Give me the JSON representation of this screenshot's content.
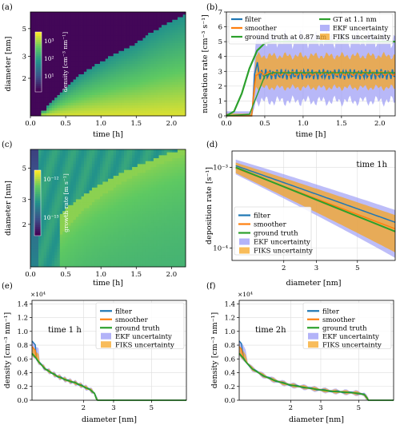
{
  "colors": {
    "filter": "#1f77b4",
    "smoother": "#ff7f0e",
    "ground_truth": "#2ca02c",
    "ekf_band": "#9a9af5",
    "fiks_band": "#f5a623",
    "viridis_low": "#440154",
    "viridis_high": "#fde725"
  },
  "chart_data": [
    {
      "panel": "(a)",
      "type": "heatmap",
      "xlabel": "time [h]",
      "ylabel": "diameter [nm]",
      "colorbar_label": "density [cm⁻³ nm⁻¹]",
      "colorbar_ticks": [
        "10³",
        "10²",
        "10¹"
      ],
      "xticks": [
        "0.0",
        "0.5",
        "1.0",
        "1.5",
        "2.0"
      ],
      "yticks": [
        "2",
        "3",
        "5"
      ],
      "xlim": [
        0,
        2.2
      ],
      "front": {
        "x": [
          0.2,
          0.5,
          1.0,
          1.5,
          2.2
        ],
        "y_nm": [
          1.1,
          1.7,
          2.7,
          3.8,
          6.5
        ]
      }
    },
    {
      "panel": "(b)",
      "type": "line",
      "xlabel": "time [h]",
      "ylabel": "nucleation rate [cm⁻³ s⁻¹]",
      "xticks": [
        "0.0",
        "0.5",
        "1.0",
        "1.5",
        "2.0"
      ],
      "yticks": [
        "0",
        "1",
        "2",
        "3",
        "4",
        "5",
        "6",
        "7"
      ],
      "xlim": [
        0,
        2.2
      ],
      "ylim": [
        0,
        7
      ],
      "legend": [
        "filter",
        "smoother",
        "ground truth at 0.87 nm",
        "GT at 1.1 nm",
        "EKF uncertainty",
        "FIKS uncertainty"
      ],
      "series": [
        {
          "name": "ground truth at 0.87 nm",
          "x": [
            0,
            0.1,
            0.2,
            0.3,
            0.4,
            0.5,
            0.6,
            0.7,
            2.2
          ],
          "y": [
            0,
            0.3,
            1.5,
            3.2,
            4.4,
            4.9,
            5.0,
            5.0,
            5.0
          ]
        },
        {
          "name": "GT at 1.1 nm",
          "x": [
            0,
            0.3,
            0.4,
            0.5,
            0.6,
            2.2
          ],
          "y": [
            0,
            0.1,
            1.4,
            2.7,
            2.9,
            2.9
          ]
        }
      ]
    },
    {
      "panel": "(c)",
      "type": "heatmap",
      "xlabel": "time [h]",
      "ylabel": "diameter [nm]",
      "colorbar_label": "growth rate [m s⁻¹]",
      "colorbar_ticks": [
        "10⁻¹²",
        "10⁻¹³"
      ],
      "xticks": [
        "0.0",
        "0.5",
        "1.0",
        "1.5",
        "2.0"
      ],
      "yticks": [
        "2",
        "3",
        "5"
      ],
      "xlim": [
        0,
        2.2
      ]
    },
    {
      "panel": "(d)",
      "type": "line",
      "title": "time 1h",
      "xlabel": "diameter [nm]",
      "ylabel": "deposition rate [s⁻¹]",
      "xscale": "log",
      "yscale": "log",
      "xticks": [
        "2",
        "3",
        "5"
      ],
      "yticks": [
        "10⁻³",
        "10⁻⁴"
      ],
      "xlim": [
        1.05,
        8.0
      ],
      "ylim": [
        7e-05,
        0.0016
      ],
      "legend": [
        "filter",
        "smoother",
        "ground truth",
        "EKF uncertainty",
        "FIKS uncertainty"
      ],
      "series": [
        {
          "name": "ground truth",
          "x": [
            1.1,
            8.0
          ],
          "y": [
            0.001,
            0.00016
          ]
        }
      ]
    },
    {
      "panel": "(e)",
      "type": "line",
      "title": "time 1 h",
      "xlabel": "diameter [nm]",
      "ylabel": "density [cm⁻³ nm⁻¹]",
      "xscale": "log",
      "offset_text": "×10⁴",
      "xticks": [
        "2",
        "3",
        "5"
      ],
      "yticks": [
        "0.0",
        "0.2",
        "0.4",
        "0.6",
        "0.8",
        "1.0",
        "1.2",
        "1.4"
      ],
      "xlim": [
        1.0,
        8.0
      ],
      "ylim": [
        0,
        1.45
      ],
      "legend": [
        "filter",
        "smoother",
        "ground truth",
        "EKF uncertainty",
        "FIKS uncertainty"
      ],
      "series": [
        {
          "name": "ground truth",
          "x": [
            1.0,
            1.05,
            1.1,
            1.2,
            1.4,
            1.6,
            1.8,
            2.0,
            2.2,
            2.32,
            2.38,
            2.42,
            8.0
          ],
          "y": [
            0.68,
            0.62,
            0.55,
            0.45,
            0.35,
            0.29,
            0.25,
            0.2,
            0.15,
            0.1,
            0.02,
            0,
            0
          ]
        }
      ]
    },
    {
      "panel": "(f)",
      "type": "line",
      "title": "time 2h",
      "xlabel": "diameter [nm]",
      "ylabel": "density [cm⁻³ nm⁻¹]",
      "xscale": "log",
      "offset_text": "×10⁴",
      "xticks": [
        "2",
        "3",
        "5"
      ],
      "yticks": [
        "0.0",
        "0.2",
        "0.4",
        "0.6",
        "0.8",
        "1.0",
        "1.2",
        "1.4"
      ],
      "xlim": [
        1.0,
        8.0
      ],
      "ylim": [
        0,
        1.45
      ],
      "legend": [
        "filter",
        "smoother",
        "ground truth",
        "EKF uncertainty",
        "FIKS uncertainty"
      ],
      "series": [
        {
          "name": "ground truth",
          "x": [
            1.0,
            1.05,
            1.1,
            1.2,
            1.4,
            1.6,
            1.8,
            2.0,
            2.5,
            3.0,
            3.5,
            4.0,
            4.5,
            5.0,
            5.4,
            5.6,
            5.7,
            8.0
          ],
          "y": [
            0.68,
            0.62,
            0.55,
            0.45,
            0.35,
            0.29,
            0.25,
            0.22,
            0.18,
            0.15,
            0.13,
            0.12,
            0.11,
            0.1,
            0.08,
            0.03,
            0,
            0
          ]
        }
      ]
    }
  ]
}
